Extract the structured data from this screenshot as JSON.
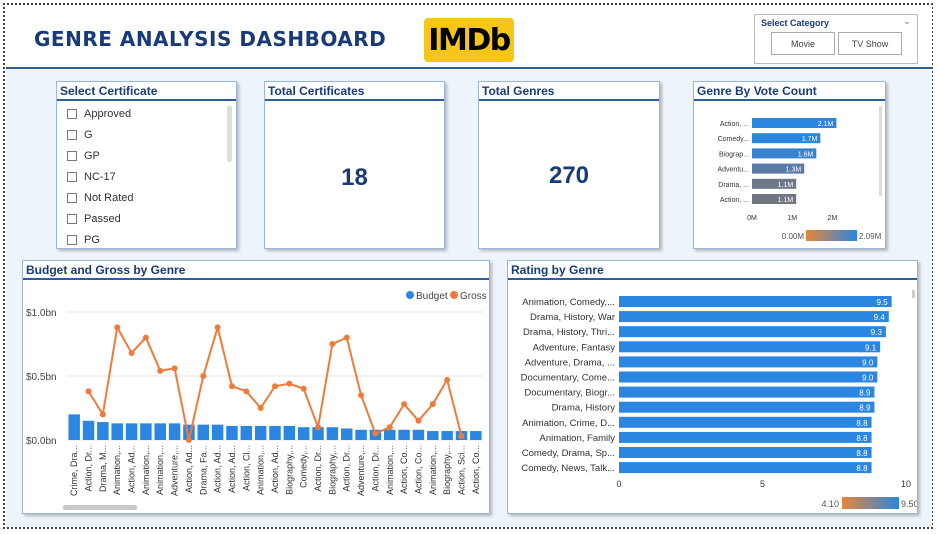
{
  "header": {
    "title": "GENRE ANALYSIS DASHBOARD",
    "logo_text": "IMDb",
    "logo_color": "#f5c518",
    "category": {
      "title": "Select Category",
      "chevron_icon": "chevron-down-icon",
      "options": [
        "Movie",
        "TV Show"
      ]
    }
  },
  "certificate": {
    "title": "Select Certificate",
    "items": [
      "Approved",
      "G",
      "GP",
      "NC-17",
      "Not Rated",
      "Passed",
      "PG"
    ]
  },
  "total_certificates": {
    "title": "Total Certificates",
    "value": "18"
  },
  "total_genres": {
    "title": "Total Genres",
    "value": "270"
  },
  "vote_count": {
    "title": "Genre By Vote Count",
    "color_scale": {
      "min_label": "0.00M",
      "max_label": "2.09M",
      "low_color": "#e8853a",
      "high_color": "#2a86e0"
    }
  },
  "budget_gross": {
    "title": "Budget and Gross by Genre"
  },
  "rating": {
    "title": "Rating by Genre",
    "color_scale": {
      "min_label": "4.10",
      "max_label": "9.50",
      "low_color": "#e8853a",
      "high_color": "#2a86e0"
    }
  },
  "chart_data": [
    {
      "type": "bar",
      "orientation": "horizontal",
      "title": "Genre By Vote Count",
      "categories": [
        "Action, ...",
        "Comedy...",
        "Biograp...",
        "Adventu...",
        "Drama, ...",
        "Action, ..."
      ],
      "values": [
        2.1,
        1.7,
        1.6,
        1.3,
        1.1,
        1.1
      ],
      "data_labels": [
        "2.1M",
        "1.7M",
        "1.6M",
        "1.3M",
        "1.1M",
        "1.1M"
      ],
      "colors": [
        "#2a86e0",
        "#2a86e0",
        "#3a82cf",
        "#5a7aa8",
        "#6f7888",
        "#727682"
      ],
      "xlim": [
        0,
        2.09
      ],
      "xticks": [
        0,
        1,
        2
      ],
      "xtick_labels": [
        "0M",
        "1M",
        "2M"
      ]
    },
    {
      "type": "bar",
      "title": "Budget and Gross by Genre",
      "legend": "top-right",
      "categories": [
        "Crime, Dra...",
        "Action, Dr...",
        "Drama, M...",
        "Animation,...",
        "Action, Ad...",
        "Animation,...",
        "Animation,...",
        "Adventure,...",
        "Action, Ad...",
        "Drama, Fa...",
        "Action, Ad...",
        "Action, Ad...",
        "Action, Cl...",
        "Animation,...",
        "Action, Ad...",
        "Biography,...",
        "Comedy,...",
        "Action, Dr...",
        "Biography,...",
        "Action, Dr...",
        "Adventure,...",
        "Action, Dr...",
        "Animation,...",
        "Action, Co...",
        "Action, Co...",
        "Animation,...",
        "Biography,...",
        "Action, Sci...",
        "Action, Co..."
      ],
      "series": [
        {
          "name": "Budget",
          "color": "#2a86e0",
          "type": "bar",
          "values": [
            0.2,
            0.15,
            0.14,
            0.13,
            0.13,
            0.13,
            0.13,
            0.13,
            0.12,
            0.12,
            0.12,
            0.11,
            0.11,
            0.11,
            0.11,
            0.11,
            0.1,
            0.1,
            0.1,
            0.09,
            0.08,
            0.08,
            0.08,
            0.08,
            0.08,
            0.07,
            0.07,
            0.07,
            0.07
          ]
        },
        {
          "name": "Gross",
          "color": "#f07a3a",
          "type": "line",
          "values": [
            null,
            0.38,
            0.2,
            0.88,
            0.68,
            0.8,
            0.54,
            0.56,
            0.0,
            0.5,
            0.88,
            0.42,
            0.38,
            0.25,
            0.42,
            0.44,
            0.4,
            0.1,
            0.75,
            0.8,
            0.35,
            0.05,
            0.1,
            0.28,
            0.15,
            0.28,
            0.47,
            0.03,
            null
          ]
        }
      ],
      "ylim": [
        0,
        1.0
      ],
      "yticks": [
        0,
        0.5,
        1.0
      ],
      "ytick_labels": [
        "$0.0bn",
        "$0.5bn",
        "$1.0bn"
      ]
    },
    {
      "type": "bar",
      "orientation": "horizontal",
      "title": "Rating by Genre",
      "categories": [
        "Animation, Comedy,...",
        "Drama, History, War",
        "Drama, History, Thri...",
        "Adventure, Fantasy",
        "Adventure, Drama, ...",
        "Documentary, Come...",
        "Documentary, Biogr...",
        "Drama, History",
        "Animation, Crime, D...",
        "Animation, Family",
        "Comedy, Drama, Sp...",
        "Comedy, News, Talk..."
      ],
      "values": [
        9.5,
        9.4,
        9.3,
        9.1,
        9.0,
        9.0,
        8.9,
        8.9,
        8.8,
        8.8,
        8.8,
        8.8
      ],
      "data_labels": [
        "9.5",
        "9.4",
        "9.3",
        "9.1",
        "9.0",
        "9.0",
        "8.9",
        "8.9",
        "8.8",
        "8.8",
        "8.8",
        "8.8"
      ],
      "xlim": [
        0,
        10
      ],
      "xticks": [
        0,
        5,
        10
      ]
    }
  ]
}
